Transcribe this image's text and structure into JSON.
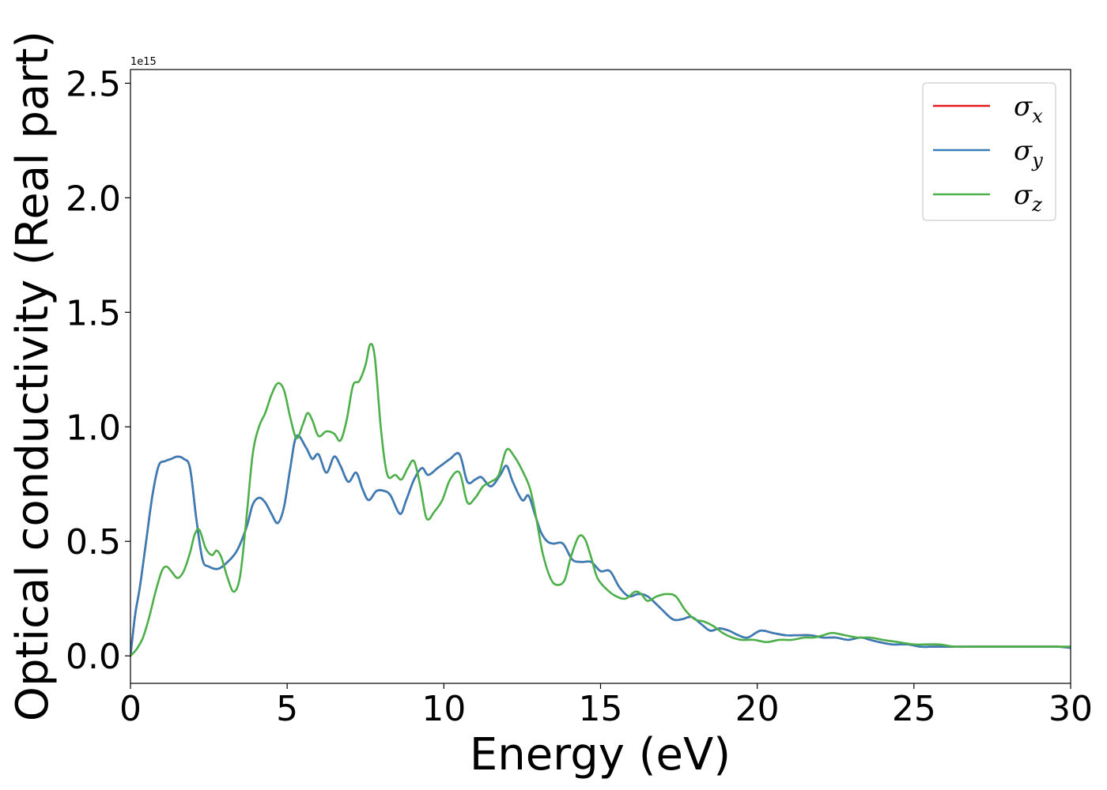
{
  "chart_data": {
    "type": "line",
    "xlabel": "Energy (eV)",
    "ylabel": "Optical conductivity (Real part)",
    "y_offset_label": "1e15",
    "xlim": [
      0,
      30
    ],
    "ylim": [
      -0.12,
      2.56
    ],
    "x_ticks": [
      0,
      5,
      10,
      15,
      20,
      25,
      30
    ],
    "x_tick_labels": [
      "0",
      "5",
      "10",
      "15",
      "20",
      "25",
      "30"
    ],
    "y_ticks": [
      0.0,
      0.5,
      1.0,
      1.5,
      2.0,
      2.5
    ],
    "y_tick_labels": [
      "0.0",
      "0.5",
      "1.0",
      "1.5",
      "2.0",
      "2.5"
    ],
    "grid": false,
    "legend_position": "top-right",
    "series": [
      {
        "name": "σx",
        "legend_symbol": "σ",
        "legend_subscript": "x",
        "color": "#e41a1c",
        "x": [
          0,
          0.15,
          0.3,
          0.5,
          0.7,
          0.9,
          1.1,
          1.3,
          1.5,
          1.7,
          1.9,
          2.1,
          2.3,
          2.5,
          2.8,
          3.1,
          3.4,
          3.7,
          3.9,
          4.1,
          4.3,
          4.5,
          4.7,
          4.9,
          5.1,
          5.3,
          5.6,
          5.8,
          6.0,
          6.25,
          6.5,
          6.7,
          6.95,
          7.2,
          7.4,
          7.6,
          7.85,
          8.1,
          8.3,
          8.6,
          8.8,
          9.05,
          9.3,
          9.5,
          9.8,
          10.0,
          10.2,
          10.5,
          10.75,
          11.0,
          11.2,
          11.5,
          11.8,
          12.0,
          12.2,
          12.5,
          12.7,
          12.9,
          13.1,
          13.3,
          13.5,
          13.8,
          14.1,
          14.4,
          14.7,
          15.0,
          15.3,
          15.6,
          15.9,
          16.2,
          16.5,
          16.9,
          17.3,
          17.6,
          17.9,
          18.2,
          18.5,
          18.8,
          19.1,
          19.4,
          19.7,
          20.1,
          20.5,
          20.9,
          21.3,
          21.7,
          22.1,
          22.5,
          22.9,
          23.3,
          23.6,
          23.9,
          24.3,
          24.8,
          25.2,
          25.6,
          26.0,
          26.5,
          27.0,
          27.5,
          28.0,
          28.5,
          28.9,
          29.2,
          29.6,
          30.0
        ],
        "values": [
          0.0,
          0.18,
          0.3,
          0.5,
          0.7,
          0.83,
          0.85,
          0.86,
          0.87,
          0.86,
          0.82,
          0.6,
          0.42,
          0.39,
          0.38,
          0.41,
          0.46,
          0.56,
          0.66,
          0.69,
          0.67,
          0.62,
          0.58,
          0.65,
          0.82,
          0.96,
          0.91,
          0.86,
          0.88,
          0.8,
          0.87,
          0.83,
          0.76,
          0.8,
          0.73,
          0.68,
          0.72,
          0.72,
          0.7,
          0.62,
          0.68,
          0.77,
          0.82,
          0.79,
          0.82,
          0.84,
          0.86,
          0.88,
          0.76,
          0.77,
          0.78,
          0.74,
          0.79,
          0.83,
          0.76,
          0.68,
          0.7,
          0.62,
          0.54,
          0.5,
          0.49,
          0.49,
          0.42,
          0.41,
          0.41,
          0.37,
          0.37,
          0.3,
          0.26,
          0.27,
          0.26,
          0.21,
          0.16,
          0.16,
          0.17,
          0.14,
          0.11,
          0.12,
          0.11,
          0.09,
          0.08,
          0.11,
          0.1,
          0.09,
          0.09,
          0.09,
          0.08,
          0.08,
          0.07,
          0.08,
          0.07,
          0.06,
          0.05,
          0.05,
          0.04,
          0.04,
          0.04,
          0.04,
          0.04,
          0.04,
          0.04,
          0.04,
          0.04,
          0.04,
          0.04,
          0.035
        ]
      },
      {
        "name": "σy",
        "legend_symbol": "σ",
        "legend_subscript": "y",
        "color": "#377eb8",
        "x": [
          0,
          0.15,
          0.3,
          0.5,
          0.7,
          0.9,
          1.1,
          1.3,
          1.5,
          1.7,
          1.9,
          2.1,
          2.3,
          2.5,
          2.8,
          3.1,
          3.4,
          3.7,
          3.9,
          4.1,
          4.3,
          4.5,
          4.7,
          4.9,
          5.1,
          5.3,
          5.6,
          5.8,
          6.0,
          6.25,
          6.5,
          6.7,
          6.95,
          7.2,
          7.4,
          7.6,
          7.85,
          8.1,
          8.3,
          8.6,
          8.8,
          9.05,
          9.3,
          9.5,
          9.8,
          10.0,
          10.2,
          10.5,
          10.75,
          11.0,
          11.2,
          11.5,
          11.8,
          12.0,
          12.2,
          12.5,
          12.7,
          12.9,
          13.1,
          13.3,
          13.5,
          13.8,
          14.1,
          14.4,
          14.7,
          15.0,
          15.3,
          15.6,
          15.9,
          16.2,
          16.5,
          16.9,
          17.3,
          17.6,
          17.9,
          18.2,
          18.5,
          18.8,
          19.1,
          19.4,
          19.7,
          20.1,
          20.5,
          20.9,
          21.3,
          21.7,
          22.1,
          22.5,
          22.9,
          23.3,
          23.6,
          23.9,
          24.3,
          24.8,
          25.2,
          25.6,
          26.0,
          26.5,
          27.0,
          27.5,
          28.0,
          28.5,
          28.9,
          29.2,
          29.6,
          30.0
        ],
        "values": [
          0.0,
          0.18,
          0.3,
          0.5,
          0.7,
          0.83,
          0.85,
          0.86,
          0.87,
          0.86,
          0.82,
          0.6,
          0.42,
          0.39,
          0.38,
          0.41,
          0.46,
          0.56,
          0.66,
          0.69,
          0.67,
          0.62,
          0.58,
          0.65,
          0.82,
          0.96,
          0.91,
          0.86,
          0.88,
          0.8,
          0.87,
          0.83,
          0.76,
          0.8,
          0.73,
          0.68,
          0.72,
          0.72,
          0.7,
          0.62,
          0.68,
          0.77,
          0.82,
          0.79,
          0.82,
          0.84,
          0.86,
          0.88,
          0.76,
          0.77,
          0.78,
          0.74,
          0.79,
          0.83,
          0.76,
          0.68,
          0.7,
          0.62,
          0.54,
          0.5,
          0.49,
          0.49,
          0.42,
          0.41,
          0.41,
          0.37,
          0.37,
          0.3,
          0.26,
          0.27,
          0.26,
          0.21,
          0.16,
          0.16,
          0.17,
          0.14,
          0.11,
          0.12,
          0.11,
          0.09,
          0.08,
          0.11,
          0.1,
          0.09,
          0.09,
          0.09,
          0.08,
          0.08,
          0.07,
          0.08,
          0.07,
          0.06,
          0.05,
          0.05,
          0.04,
          0.04,
          0.04,
          0.04,
          0.04,
          0.04,
          0.04,
          0.04,
          0.04,
          0.04,
          0.04,
          0.035
        ]
      },
      {
        "name": "σz",
        "legend_symbol": "σ",
        "legend_subscript": "z",
        "color": "#4daf4a",
        "x": [
          0,
          0.2,
          0.4,
          0.6,
          0.8,
          1.0,
          1.15,
          1.3,
          1.5,
          1.7,
          1.9,
          2.05,
          2.2,
          2.4,
          2.6,
          2.75,
          2.9,
          3.1,
          3.3,
          3.5,
          3.7,
          3.9,
          4.1,
          4.3,
          4.5,
          4.7,
          4.9,
          5.1,
          5.3,
          5.5,
          5.65,
          5.8,
          6.0,
          6.25,
          6.5,
          6.7,
          6.9,
          7.1,
          7.3,
          7.5,
          7.65,
          7.8,
          8.0,
          8.2,
          8.45,
          8.65,
          8.85,
          9.05,
          9.25,
          9.45,
          9.7,
          9.95,
          10.2,
          10.5,
          10.75,
          11.0,
          11.25,
          11.5,
          11.75,
          12.0,
          12.25,
          12.5,
          12.75,
          12.95,
          13.15,
          13.4,
          13.6,
          13.85,
          14.05,
          14.3,
          14.5,
          14.7,
          14.9,
          15.2,
          15.5,
          15.8,
          16.1,
          16.3,
          16.5,
          16.8,
          17.1,
          17.4,
          17.7,
          18.0,
          18.3,
          18.6,
          18.9,
          19.2,
          19.5,
          19.9,
          20.3,
          20.7,
          21.1,
          21.5,
          21.8,
          22.1,
          22.4,
          22.8,
          23.2,
          23.6,
          24.0,
          24.5,
          25.0,
          25.4,
          25.8,
          26.3,
          26.8,
          27.3,
          27.8,
          28.3,
          28.8,
          29.3,
          29.7,
          30.0
        ],
        "values": [
          0.0,
          0.03,
          0.08,
          0.17,
          0.28,
          0.37,
          0.39,
          0.37,
          0.34,
          0.37,
          0.45,
          0.53,
          0.55,
          0.47,
          0.44,
          0.46,
          0.43,
          0.34,
          0.28,
          0.35,
          0.6,
          0.88,
          1.0,
          1.06,
          1.14,
          1.19,
          1.16,
          1.04,
          0.95,
          1.01,
          1.06,
          1.03,
          0.96,
          0.98,
          0.97,
          0.94,
          1.03,
          1.18,
          1.2,
          1.27,
          1.36,
          1.3,
          0.98,
          0.79,
          0.79,
          0.77,
          0.82,
          0.85,
          0.74,
          0.6,
          0.63,
          0.68,
          0.77,
          0.8,
          0.67,
          0.69,
          0.74,
          0.76,
          0.79,
          0.9,
          0.87,
          0.81,
          0.73,
          0.6,
          0.45,
          0.34,
          0.31,
          0.33,
          0.43,
          0.52,
          0.51,
          0.43,
          0.34,
          0.29,
          0.26,
          0.25,
          0.28,
          0.27,
          0.24,
          0.26,
          0.27,
          0.26,
          0.2,
          0.16,
          0.15,
          0.13,
          0.1,
          0.08,
          0.07,
          0.07,
          0.06,
          0.07,
          0.07,
          0.08,
          0.08,
          0.09,
          0.1,
          0.09,
          0.08,
          0.08,
          0.07,
          0.06,
          0.05,
          0.05,
          0.05,
          0.04,
          0.04,
          0.04,
          0.04,
          0.04,
          0.04,
          0.04,
          0.04,
          0.04
        ]
      }
    ]
  }
}
